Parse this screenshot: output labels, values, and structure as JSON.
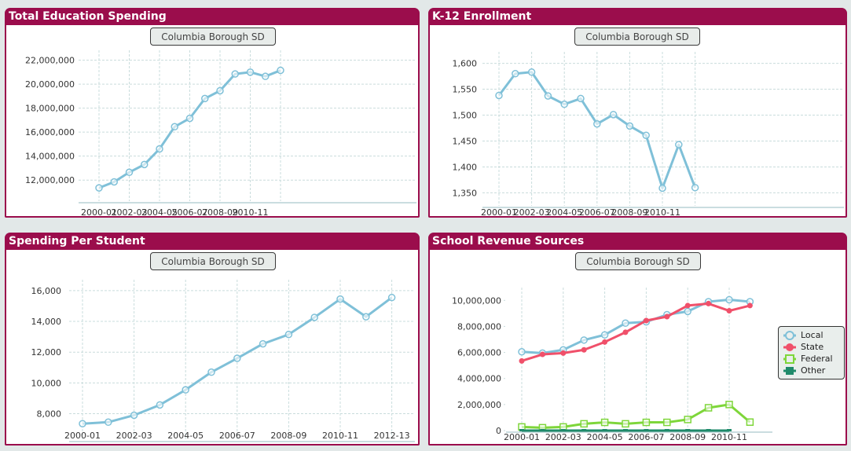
{
  "district_button_label": "Columbia Borough SD",
  "colors": {
    "title_bar": "#9b0d4c",
    "line_blue": "#7fc0d8",
    "state_red": "#f0506a",
    "federal_green": "#7ed63a",
    "other_teal": "#1f8a6a",
    "grid": "#c9dcdc"
  },
  "chart_data": [
    {
      "id": "total-spending",
      "type": "line",
      "title": "Total Education Spending",
      "xlabel": "",
      "ylabel": "",
      "x": [
        "2000-01",
        "2001-02",
        "2002-03",
        "2003-04",
        "2004-05",
        "2005-06",
        "2006-07",
        "2007-08",
        "2008-09",
        "2009-10",
        "2010-11",
        "2011-12",
        "2012-13"
      ],
      "x_tick_labels": [
        "2000-01",
        "2002-03",
        "2004-05",
        "2006-07",
        "2008-09",
        "2010-11"
      ],
      "y_tick_labels": [
        "12,000,000",
        "14,000,000",
        "16,000,000",
        "18,000,000",
        "20,000,000",
        "22,000,000"
      ],
      "y_ticks": [
        12000000,
        14000000,
        16000000,
        18000000,
        20000000,
        22000000
      ],
      "ylim": [
        10900000,
        22300000
      ],
      "grid": true,
      "series": [
        {
          "name": "Total Education Spending",
          "color": "#7fc0d8",
          "marker": "circle-open",
          "values": [
            11350000,
            11850000,
            12650000,
            13300000,
            14600000,
            16450000,
            17150000,
            18800000,
            19450000,
            20850000,
            21000000,
            20650000,
            21150000
          ]
        }
      ]
    },
    {
      "id": "enrollment",
      "type": "line",
      "title": "K-12 Enrollment",
      "xlabel": "",
      "ylabel": "",
      "x": [
        "2000-01",
        "2001-02",
        "2002-03",
        "2003-04",
        "2004-05",
        "2005-06",
        "2006-07",
        "2007-08",
        "2008-09",
        "2009-10",
        "2010-11",
        "2011-12",
        "2012-13"
      ],
      "x_tick_labels": [
        "2000-01",
        "2002-03",
        "2004-05",
        "2006-07",
        "2008-09",
        "2010-11"
      ],
      "y_tick_labels": [
        "1,350",
        "1,400",
        "1,450",
        "1,500",
        "1,550",
        "1,600"
      ],
      "y_ticks": [
        1350,
        1400,
        1450,
        1500,
        1550,
        1600
      ],
      "ylim": [
        1340,
        1610
      ],
      "grid": true,
      "series": [
        {
          "name": "K-12 Enrollment",
          "color": "#7fc0d8",
          "marker": "circle-open",
          "values": [
            1538,
            1580,
            1583,
            1537,
            1521,
            1532,
            1483,
            1501,
            1479,
            1461,
            1359,
            1443,
            1360
          ]
        }
      ]
    },
    {
      "id": "per-student",
      "type": "line",
      "title": "Spending Per Student",
      "xlabel": "",
      "ylabel": "",
      "x": [
        "2000-01",
        "2001-02",
        "2002-03",
        "2003-04",
        "2004-05",
        "2005-06",
        "2006-07",
        "2007-08",
        "2008-09",
        "2009-10",
        "2010-11",
        "2011-12",
        "2012-13"
      ],
      "x_tick_labels": [
        "2000-01",
        "2002-03",
        "2004-05",
        "2006-07",
        "2008-09",
        "2010-11",
        "2012-13"
      ],
      "y_tick_labels": [
        "8,000",
        "10,000",
        "12,000",
        "14,000",
        "16,000"
      ],
      "y_ticks": [
        8000,
        10000,
        12000,
        14000,
        16000
      ],
      "ylim": [
        6800,
        16300
      ],
      "grid": true,
      "series": [
        {
          "name": "Spending Per Student",
          "color": "#7fc0d8",
          "marker": "circle-open",
          "values": [
            7350,
            7450,
            7900,
            8570,
            9550,
            10700,
            11600,
            12540,
            13150,
            14260,
            15450,
            14300,
            15550
          ]
        }
      ]
    },
    {
      "id": "revenue-sources",
      "type": "line",
      "title": "School Revenue Sources",
      "xlabel": "",
      "ylabel": "",
      "x": [
        "2000-01",
        "2001-02",
        "2002-03",
        "2003-04",
        "2004-05",
        "2005-06",
        "2006-07",
        "2007-08",
        "2008-09",
        "2009-10",
        "2010-11",
        "2011-12"
      ],
      "x_tick_labels": [
        "2000-01",
        "2002-03",
        "2004-05",
        "2006-07",
        "2008-09",
        "2010-11"
      ],
      "y_tick_labels": [
        "0",
        "2,000,000",
        "4,000,000",
        "6,000,000",
        "8,000,000",
        "10,000,000"
      ],
      "y_ticks": [
        0,
        2000000,
        4000000,
        6000000,
        8000000,
        10000000
      ],
      "ylim": [
        0,
        10500000
      ],
      "grid": "vertical-only",
      "legend": "right",
      "series": [
        {
          "name": "Local",
          "color": "#7fc0d8",
          "marker": "circle-open",
          "values": [
            6050000,
            5950000,
            6200000,
            6950000,
            7350000,
            8250000,
            8350000,
            8900000,
            9150000,
            9900000,
            10050000,
            9900000
          ]
        },
        {
          "name": "State",
          "color": "#f0506a",
          "marker": "circle-filled",
          "values": [
            5350000,
            5850000,
            5950000,
            6200000,
            6800000,
            7550000,
            8450000,
            8750000,
            9600000,
            9750000,
            9200000,
            9600000
          ]
        },
        {
          "name": "Federal",
          "color": "#7ed63a",
          "marker": "square-open",
          "values": [
            280000,
            220000,
            280000,
            520000,
            630000,
            520000,
            630000,
            630000,
            850000,
            1750000,
            2000000,
            650000
          ]
        },
        {
          "name": "Other",
          "color": "#1f8a6a",
          "marker": "square-filled",
          "values": [
            0,
            0,
            0,
            0,
            0,
            0,
            0,
            0,
            0,
            0,
            0,
            null
          ]
        }
      ]
    }
  ]
}
